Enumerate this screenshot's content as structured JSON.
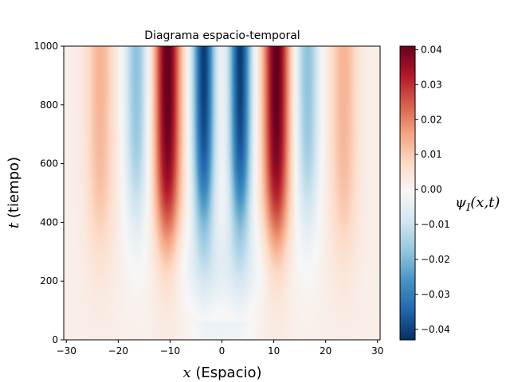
{
  "chart_data": {
    "type": "heatmap",
    "title": "Diagrama espacio-temporal",
    "xlabel": "x (Espacio)",
    "ylabel": "t (tiempo)",
    "colorbar_label": "ψ_I(x,t)",
    "colormap": "RdBu_r",
    "xlim": [
      -30.5,
      30.5
    ],
    "ylim": [
      0,
      1000
    ],
    "clim": [
      -0.043,
      0.041
    ],
    "xticks": [
      -30,
      -20,
      -10,
      0,
      10,
      20,
      30
    ],
    "yticks": [
      0,
      200,
      400,
      600,
      800,
      1000
    ],
    "cbar_ticks": [
      0.04,
      0.03,
      0.02,
      0.01,
      0.0,
      -0.01,
      -0.02,
      -0.03,
      -0.04
    ],
    "cbar_tick_labels": [
      "0.04",
      "0.03",
      "0.02",
      "0.01",
      "0.00",
      "−0.01",
      "−0.02",
      "−0.03",
      "−0.04"
    ],
    "bands": [
      {
        "x": 10.5,
        "width": 2.4,
        "amplitude": 0.041,
        "onset": 380
      },
      {
        "x": -10.5,
        "width": 2.4,
        "amplitude": 0.041,
        "onset": 380
      },
      {
        "x": 3.5,
        "width": 2.1,
        "amplitude": -0.043,
        "onset": 420
      },
      {
        "x": -3.5,
        "width": 2.1,
        "amplitude": -0.043,
        "onset": 420
      },
      {
        "x": 16.5,
        "width": 2.2,
        "amplitude": -0.02,
        "onset": 450
      },
      {
        "x": -16.5,
        "width": 2.2,
        "amplitude": -0.02,
        "onset": 450
      },
      {
        "x": 23.5,
        "width": 2.6,
        "amplitude": 0.012,
        "onset": 350
      },
      {
        "x": -23.5,
        "width": 2.6,
        "amplitude": 0.012,
        "onset": 350
      }
    ]
  }
}
